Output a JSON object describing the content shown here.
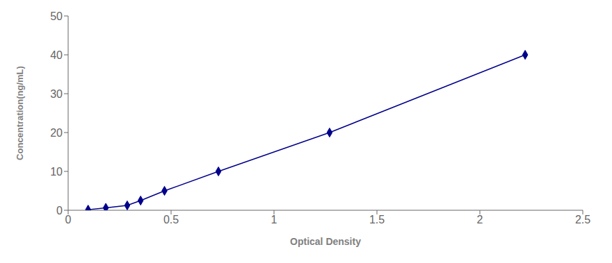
{
  "chart_data": {
    "type": "line",
    "x": [
      0.097,
      0.183,
      0.287,
      0.352,
      0.468,
      0.73,
      1.27,
      2.22
    ],
    "values": [
      0.156,
      0.625,
      1.25,
      2.5,
      5.0,
      10.0,
      20.0,
      40.0
    ],
    "color": "#00008B",
    "marker": "diamond",
    "xlabel": "Optical Density",
    "ylabel": "Concentration(ng/mL)",
    "xlim": [
      0.0,
      2.5
    ],
    "ylim": [
      0,
      50
    ],
    "xticks": [
      0,
      0.5,
      1.0,
      1.5,
      2.0,
      2.5
    ],
    "yticks": [
      0,
      10,
      20,
      30,
      40,
      50
    ],
    "grid": false
  }
}
